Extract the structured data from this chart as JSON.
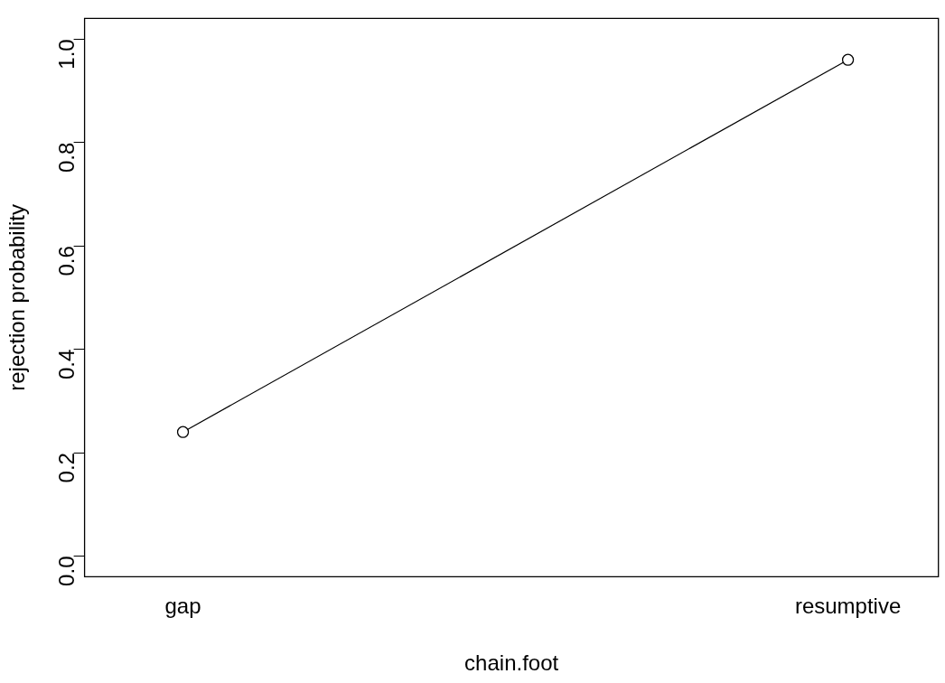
{
  "chart_data": {
    "type": "line",
    "xlabel": "chain.foot",
    "ylabel": "rejection probability",
    "categories": [
      "gap",
      "resumptive"
    ],
    "series": [
      {
        "color": "#000000",
        "values": [
          0.24,
          0.96
        ]
      }
    ],
    "ylim": [
      -0.04,
      1.04
    ],
    "yticks": [
      {
        "value": 0,
        "label": "0.0"
      },
      0.2,
      0.4,
      0.6,
      0.8,
      {
        "value": 1,
        "label": "1.0"
      }
    ],
    "grid": false,
    "legend": false,
    "marker": "circle",
    "line_style": "solid"
  }
}
